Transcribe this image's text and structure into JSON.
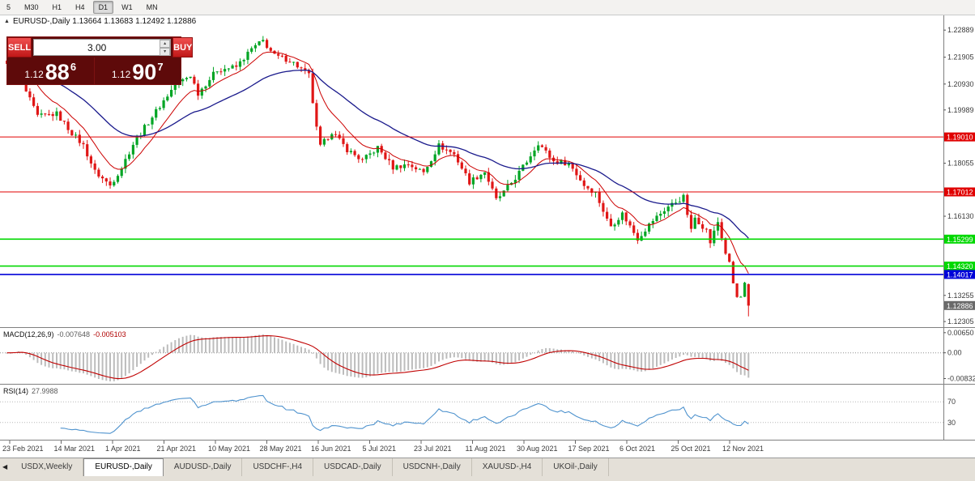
{
  "toolbar": {
    "timeframes": [
      {
        "label": "5",
        "active": false
      },
      {
        "label": "M30",
        "active": false
      },
      {
        "label": "H1",
        "active": false
      },
      {
        "label": "H4",
        "active": false
      },
      {
        "label": "D1",
        "active": true
      },
      {
        "label": "W1",
        "active": false
      },
      {
        "label": "MN",
        "active": false
      }
    ]
  },
  "chart_header": {
    "collapse_icon": "▲",
    "text": "EURUSD-,Daily 1.13664 1.13683 1.12492 1.12886"
  },
  "trade_panel": {
    "sell_label": "SELL",
    "buy_label": "BUY",
    "volume": "3.00",
    "spin_up_icon": "▴",
    "spin_down_icon": "▾",
    "sell_price": {
      "prefix": "1.12",
      "big": "88",
      "sup": "6"
    },
    "buy_price": {
      "prefix": "1.12",
      "big": "90",
      "sup": "7"
    },
    "colors": {
      "panel_bg": "#5e0a0a",
      "button_red": "#d92525",
      "text": "#ffffff"
    }
  },
  "indicators": {
    "macd_name": "MACD(12,26,9)",
    "macd_value_main": "-0.007648",
    "macd_value_signal": "-0.005103",
    "rsi_name": "RSI(14)",
    "rsi_value": "27.9988"
  },
  "tabs": {
    "scroll_left_icon": "◀",
    "items": [
      {
        "label": "USDX,Weekly",
        "active": false
      },
      {
        "label": "EURUSD-,Daily",
        "active": true
      },
      {
        "label": "AUDUSD-,Daily",
        "active": false
      },
      {
        "label": "USDCHF-,H4",
        "active": false
      },
      {
        "label": "USDCAD-,Daily",
        "active": false
      },
      {
        "label": "USDCNH-,Daily",
        "active": false
      },
      {
        "label": "XAUUSD-,H4",
        "active": false
      },
      {
        "label": "UKOil-,Daily",
        "active": false
      }
    ]
  },
  "chart_data": {
    "type": "candlestick",
    "title": "EURUSD-,Daily",
    "ohlc_display": {
      "open": "1.13664",
      "high": "1.13683",
      "low": "1.12492",
      "close": "1.12886"
    },
    "x_axis": {
      "date_labels": [
        "23 Feb 2021",
        "14 Mar 2021",
        "1 Apr 2021",
        "21 Apr 2021",
        "10 May 2021",
        "28 May 2021",
        "16 Jun 2021",
        "5 Jul 2021",
        "23 Jul 2021",
        "11 Aug 2021",
        "30 Aug 2021",
        "17 Sep 2021",
        "6 Oct 2021",
        "25 Oct 2021",
        "12 Nov 2021"
      ]
    },
    "y_axis": {
      "range": [
        1.1219,
        1.231
      ],
      "ticks": [
        "1.22889",
        "1.21905",
        "1.20930",
        "1.19989",
        "1.18055",
        "1.16130",
        "1.13255",
        "1.12305"
      ]
    },
    "num_candles": 195,
    "close_anchors": [
      [
        0,
        1.216
      ],
      [
        2,
        1.2185
      ],
      [
        3,
        1.2205
      ],
      [
        4,
        1.215
      ],
      [
        5,
        1.2065
      ],
      [
        8,
        1.1975
      ],
      [
        13,
        1.1985
      ],
      [
        17,
        1.1915
      ],
      [
        20,
        1.187
      ],
      [
        23,
        1.1775
      ],
      [
        27,
        1.1725
      ],
      [
        30,
        1.179
      ],
      [
        33,
        1.1875
      ],
      [
        38,
        1.1975
      ],
      [
        44,
        1.209
      ],
      [
        48,
        1.2125
      ],
      [
        50,
        1.206
      ],
      [
        55,
        1.2145
      ],
      [
        60,
        1.2155
      ],
      [
        64,
        1.222
      ],
      [
        67,
        1.225
      ],
      [
        70,
        1.2195
      ],
      [
        74,
        1.218
      ],
      [
        79,
        1.2125
      ],
      [
        81,
        1.193
      ],
      [
        82,
        1.1865
      ],
      [
        85,
        1.192
      ],
      [
        89,
        1.1855
      ],
      [
        93,
        1.1815
      ],
      [
        97,
        1.1862
      ],
      [
        101,
        1.179
      ],
      [
        105,
        1.1802
      ],
      [
        109,
        1.1772
      ],
      [
        113,
        1.187
      ],
      [
        117,
        1.1838
      ],
      [
        121,
        1.1738
      ],
      [
        125,
        1.1775
      ],
      [
        128,
        1.1672
      ],
      [
        130,
        1.17
      ],
      [
        133,
        1.1752
      ],
      [
        136,
        1.1812
      ],
      [
        139,
        1.188
      ],
      [
        143,
        1.1812
      ],
      [
        147,
        1.1806
      ],
      [
        151,
        1.1726
      ],
      [
        154,
        1.1698
      ],
      [
        157,
        1.16
      ],
      [
        158,
        1.1578
      ],
      [
        161,
        1.1622
      ],
      [
        165,
        1.1532
      ],
      [
        169,
        1.1598
      ],
      [
        173,
        1.1648
      ],
      [
        177,
        1.1682
      ],
      [
        179,
        1.156
      ],
      [
        180,
        1.1608
      ],
      [
        183,
        1.1562
      ],
      [
        184,
        1.1518
      ],
      [
        186,
        1.1592
      ],
      [
        188,
        1.1478
      ],
      [
        189,
        1.1445
      ],
      [
        190,
        1.1369
      ],
      [
        191,
        1.1319
      ],
      [
        192,
        1.132
      ],
      [
        193,
        1.137
      ],
      [
        194,
        1.12886
      ]
    ],
    "last_candle": {
      "open": 1.13664,
      "high": 1.13683,
      "low": 1.12492,
      "close": 1.12886
    },
    "colors": {
      "up": "#00a524",
      "down": "#e01616"
    },
    "moving_averages": [
      {
        "period": 10,
        "color": "#cc0000",
        "width": 1
      },
      {
        "period": 34,
        "color": "#1a1a8c",
        "width": 1.3
      }
    ],
    "horizontal_lines": [
      {
        "price": 1.1901,
        "label": "1.19010",
        "color": "#e00000",
        "width": 1
      },
      {
        "price": 1.17012,
        "label": "1.17012",
        "color": "#e00000",
        "width": 1
      },
      {
        "price": 1.15299,
        "label": "1.15299",
        "color": "#00d800",
        "width": 1.6
      },
      {
        "price": 1.1432,
        "label": "1.14320",
        "color": "#00d800",
        "width": 1.6
      },
      {
        "price": 1.14017,
        "label": "1.14017",
        "color": "#0000d8",
        "width": 1.6
      }
    ],
    "current_price": {
      "label": "1.12886",
      "badge_color": "#6a6a6a"
    },
    "macd": {
      "params": [
        12,
        26,
        9
      ],
      "axis_labels": [
        "0.00650",
        "0.00",
        "-0.00832"
      ],
      "range": [
        -0.0095,
        0.0075
      ],
      "histogram_color": "#bcbcbc",
      "signal_color": "#c00000"
    },
    "rsi": {
      "period": 14,
      "levels": [
        70,
        30
      ],
      "range": [
        0,
        100
      ],
      "line_color": "#4f93ce"
    }
  }
}
